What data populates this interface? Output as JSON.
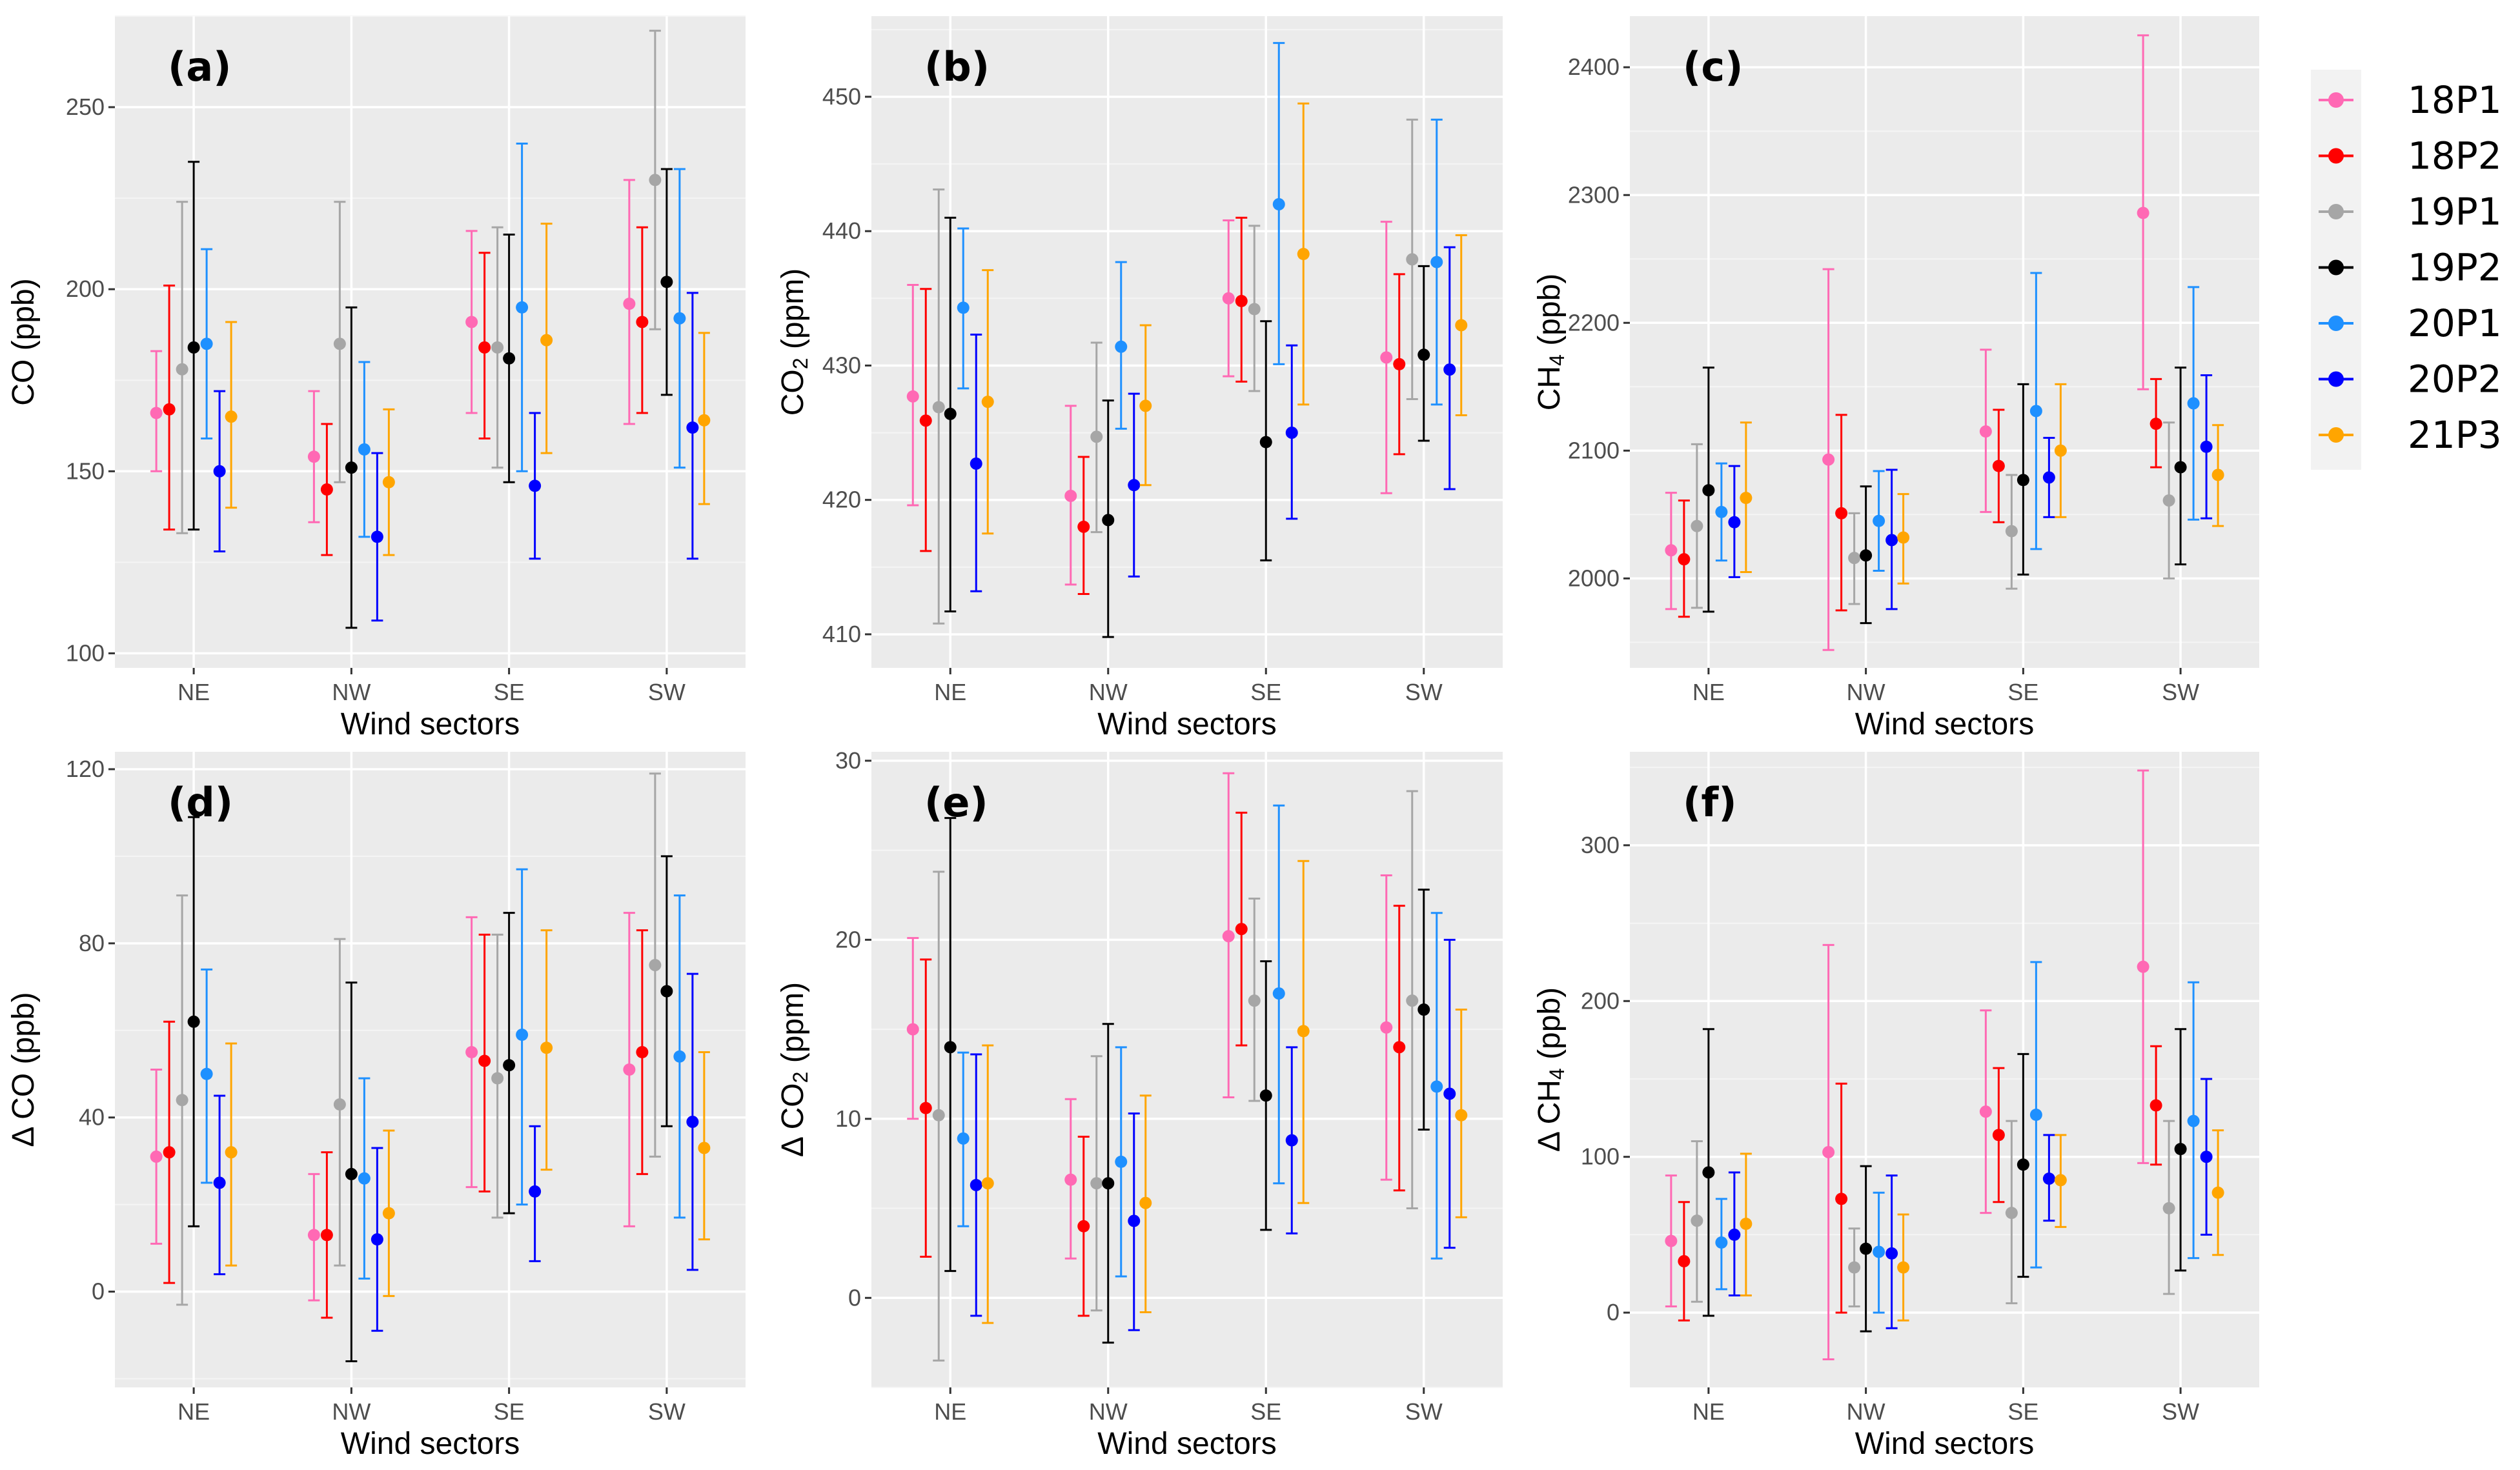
{
  "legend": {
    "items": [
      {
        "name": "18P1",
        "color": "#ff69b4"
      },
      {
        "name": "18P2",
        "color": "#ff0000"
      },
      {
        "name": "19P1",
        "color": "#a6a6a6"
      },
      {
        "name": "19P2",
        "color": "#000000"
      },
      {
        "name": "20P1",
        "color": "#1e90ff"
      },
      {
        "name": "20P2",
        "color": "#0000ff"
      },
      {
        "name": "21P3",
        "color": "#ffa500"
      }
    ]
  },
  "chart_data": [
    {
      "type": "scatter",
      "panel": "(a)",
      "title": "",
      "xlabel": "Wind sectors",
      "ylabel": "CO (ppb)",
      "ylabel_parts": [
        "CO (ppb)"
      ],
      "categories": [
        "NE",
        "NW",
        "SE",
        "SW"
      ],
      "yticks": [
        100,
        150,
        200,
        250
      ],
      "ylim": [
        96,
        275
      ],
      "series": [
        {
          "name": "18P1",
          "values": [
            166,
            154,
            191,
            196
          ],
          "lower": [
            150,
            136,
            166,
            163
          ],
          "upper": [
            183,
            172,
            216,
            230
          ]
        },
        {
          "name": "18P2",
          "values": [
            167,
            145,
            184,
            191
          ],
          "lower": [
            134,
            127,
            159,
            166
          ],
          "upper": [
            201,
            163,
            210,
            217
          ]
        },
        {
          "name": "19P1",
          "values": [
            178,
            185,
            184,
            230
          ],
          "lower": [
            133,
            147,
            151,
            189
          ],
          "upper": [
            224,
            224,
            217,
            271
          ]
        },
        {
          "name": "19P2",
          "values": [
            184,
            151,
            181,
            202
          ],
          "lower": [
            134,
            107,
            147,
            171
          ],
          "upper": [
            235,
            195,
            215,
            233
          ]
        },
        {
          "name": "20P1",
          "values": [
            185,
            156,
            195,
            192
          ],
          "lower": [
            159,
            132,
            150,
            151
          ],
          "upper": [
            211,
            180,
            240,
            233
          ]
        },
        {
          "name": "20P2",
          "values": [
            150,
            132,
            146,
            162
          ],
          "lower": [
            128,
            109,
            126,
            126
          ],
          "upper": [
            172,
            155,
            166,
            199
          ]
        },
        {
          "name": "21P3",
          "values": [
            165,
            147,
            186,
            164
          ],
          "lower": [
            140,
            127,
            155,
            141
          ],
          "upper": [
            191,
            167,
            218,
            188
          ]
        }
      ]
    },
    {
      "type": "scatter",
      "panel": "(b)",
      "title": "",
      "xlabel": "Wind sectors",
      "ylabel": "CO2 (ppm)",
      "ylabel_parts": [
        "CO",
        "2",
        " (ppm)"
      ],
      "categories": [
        "NE",
        "NW",
        "SE",
        "SW"
      ],
      "yticks": [
        410,
        420,
        430,
        440,
        450
      ],
      "ylim": [
        407.5,
        456
      ],
      "series": [
        {
          "name": "18P1",
          "values": [
            427.7,
            420.3,
            435.0,
            430.6
          ],
          "lower": [
            419.6,
            413.7,
            429.2,
            420.5
          ],
          "upper": [
            436.0,
            427.0,
            440.8,
            440.7
          ]
        },
        {
          "name": "18P2",
          "values": [
            425.9,
            418.0,
            434.8,
            430.1
          ],
          "lower": [
            416.2,
            413.0,
            428.8,
            423.4
          ],
          "upper": [
            435.7,
            423.2,
            441.0,
            436.8
          ]
        },
        {
          "name": "19P1",
          "values": [
            426.9,
            424.7,
            434.2,
            437.9
          ],
          "lower": [
            410.8,
            417.6,
            428.1,
            427.5
          ],
          "upper": [
            443.1,
            431.7,
            440.4,
            448.3
          ]
        },
        {
          "name": "19P2",
          "values": [
            426.4,
            418.5,
            424.3,
            430.8
          ],
          "lower": [
            411.7,
            409.8,
            415.5,
            424.4
          ],
          "upper": [
            441.0,
            427.4,
            433.3,
            437.4
          ]
        },
        {
          "name": "20P1",
          "values": [
            434.3,
            431.4,
            442.0,
            437.7
          ],
          "lower": [
            428.3,
            425.3,
            430.1,
            427.1
          ],
          "upper": [
            440.2,
            437.7,
            454.0,
            448.3
          ]
        },
        {
          "name": "20P2",
          "values": [
            422.7,
            421.1,
            425.0,
            429.7
          ],
          "lower": [
            413.2,
            414.3,
            418.6,
            420.8
          ],
          "upper": [
            432.3,
            427.9,
            431.5,
            438.8
          ]
        },
        {
          "name": "21P3",
          "values": [
            427.3,
            427.0,
            438.3,
            433.0
          ],
          "lower": [
            417.5,
            421.1,
            427.1,
            426.3
          ],
          "upper": [
            437.1,
            433.0,
            449.5,
            439.7
          ]
        }
      ]
    },
    {
      "type": "scatter",
      "panel": "(c)",
      "title": "",
      "xlabel": "Wind sectors",
      "ylabel": "CH4 (ppb)",
      "ylabel_parts": [
        "CH",
        "4",
        " (ppb)"
      ],
      "categories": [
        "NE",
        "NW",
        "SE",
        "SW"
      ],
      "yticks": [
        2000,
        2100,
        2200,
        2300,
        2400
      ],
      "ylim": [
        1930,
        2440
      ],
      "series": [
        {
          "name": "18P1",
          "values": [
            2022,
            2093,
            2115,
            2286
          ],
          "lower": [
            1976,
            1944,
            2052,
            2148
          ],
          "upper": [
            2067,
            2242,
            2179,
            2425
          ]
        },
        {
          "name": "18P2",
          "values": [
            2015,
            2051,
            2088,
            2121
          ],
          "lower": [
            1970,
            1975,
            2044,
            2087
          ],
          "upper": [
            2061,
            2128,
            2132,
            2156
          ]
        },
        {
          "name": "19P1",
          "values": [
            2041,
            2016,
            2037,
            2061
          ],
          "lower": [
            1977,
            1980,
            1992,
            2000
          ],
          "upper": [
            2105,
            2051,
            2081,
            2122
          ]
        },
        {
          "name": "19P2",
          "values": [
            2069,
            2018,
            2077,
            2087
          ],
          "lower": [
            1974,
            1965,
            2003,
            2011
          ],
          "upper": [
            2165,
            2072,
            2152,
            2165
          ]
        },
        {
          "name": "20P1",
          "values": [
            2052,
            2045,
            2131,
            2137
          ],
          "lower": [
            2014,
            2006,
            2023,
            2046
          ],
          "upper": [
            2090,
            2084,
            2239,
            2228
          ]
        },
        {
          "name": "20P2",
          "values": [
            2044,
            2030,
            2079,
            2103
          ],
          "lower": [
            2001,
            1976,
            2048,
            2047
          ],
          "upper": [
            2088,
            2085,
            2110,
            2159
          ]
        },
        {
          "name": "21P3",
          "values": [
            2063,
            2032,
            2100,
            2081
          ],
          "lower": [
            2005,
            1996,
            2048,
            2041
          ],
          "upper": [
            2122,
            2066,
            2152,
            2120
          ]
        }
      ]
    },
    {
      "type": "scatter",
      "panel": "(d)",
      "title": "",
      "xlabel": "Wind sectors",
      "ylabel": "Δ CO (ppb)",
      "ylabel_parts": [
        "Δ CO (ppb)"
      ],
      "categories": [
        "NE",
        "NW",
        "SE",
        "SW"
      ],
      "yticks": [
        0,
        40,
        80,
        120
      ],
      "ylim": [
        -22,
        124
      ],
      "series": [
        {
          "name": "18P1",
          "values": [
            31,
            13,
            55,
            51
          ],
          "lower": [
            11,
            -2,
            24,
            15
          ],
          "upper": [
            51,
            27,
            86,
            87
          ]
        },
        {
          "name": "18P2",
          "values": [
            32,
            13,
            53,
            55
          ],
          "lower": [
            2,
            -6,
            23,
            27
          ],
          "upper": [
            62,
            32,
            82,
            83
          ]
        },
        {
          "name": "19P1",
          "values": [
            44,
            43,
            49,
            75
          ],
          "lower": [
            -3,
            6,
            17,
            31
          ],
          "upper": [
            91,
            81,
            82,
            119
          ]
        },
        {
          "name": "19P2",
          "values": [
            62,
            27,
            52,
            69
          ],
          "lower": [
            15,
            -16,
            18,
            38
          ],
          "upper": [
            109,
            71,
            87,
            100
          ]
        },
        {
          "name": "20P1",
          "values": [
            50,
            26,
            59,
            54
          ],
          "lower": [
            25,
            3,
            20,
            17
          ],
          "upper": [
            74,
            49,
            97,
            91
          ]
        },
        {
          "name": "20P2",
          "values": [
            25,
            12,
            23,
            39
          ],
          "lower": [
            4,
            -9,
            7,
            5
          ],
          "upper": [
            45,
            33,
            38,
            73
          ]
        },
        {
          "name": "21P3",
          "values": [
            32,
            18,
            56,
            33
          ],
          "lower": [
            6,
            -1,
            28,
            12
          ],
          "upper": [
            57,
            37,
            83,
            55
          ]
        }
      ]
    },
    {
      "type": "scatter",
      "panel": "(e)",
      "title": "",
      "xlabel": "Wind sectors",
      "ylabel": "Δ CO2 (ppm)",
      "ylabel_parts": [
        "Δ CO",
        "2",
        " (ppm)"
      ],
      "categories": [
        "NE",
        "NW",
        "SE",
        "SW"
      ],
      "yticks": [
        0,
        10,
        20,
        30
      ],
      "ylim": [
        -5,
        30.5
      ],
      "series": [
        {
          "name": "18P1",
          "values": [
            15.0,
            6.6,
            20.2,
            15.1
          ],
          "lower": [
            10.0,
            2.2,
            11.2,
            6.6
          ],
          "upper": [
            20.1,
            11.1,
            29.3,
            23.6
          ]
        },
        {
          "name": "18P2",
          "values": [
            10.6,
            4.0,
            20.6,
            14.0
          ],
          "lower": [
            2.3,
            -1.0,
            14.1,
            6.0
          ],
          "upper": [
            18.9,
            9.0,
            27.1,
            21.9
          ]
        },
        {
          "name": "19P1",
          "values": [
            10.2,
            6.4,
            16.6,
            16.6
          ],
          "lower": [
            -3.5,
            -0.7,
            11.0,
            5.0
          ],
          "upper": [
            23.8,
            13.5,
            22.3,
            28.3
          ]
        },
        {
          "name": "19P2",
          "values": [
            14.0,
            6.4,
            11.3,
            16.1
          ],
          "lower": [
            1.5,
            -2.5,
            3.8,
            9.4
          ],
          "upper": [
            26.8,
            15.3,
            18.8,
            22.8
          ]
        },
        {
          "name": "20P1",
          "values": [
            8.9,
            7.6,
            17.0,
            11.8
          ],
          "lower": [
            4.0,
            1.2,
            6.4,
            2.2
          ],
          "upper": [
            13.7,
            14.0,
            27.5,
            21.5
          ]
        },
        {
          "name": "20P2",
          "values": [
            6.3,
            4.3,
            8.8,
            11.4
          ],
          "lower": [
            -1.0,
            -1.8,
            3.6,
            2.8
          ],
          "upper": [
            13.6,
            10.3,
            14.0,
            20.0
          ]
        },
        {
          "name": "21P3",
          "values": [
            6.4,
            5.3,
            14.9,
            10.2
          ],
          "lower": [
            -1.4,
            -0.8,
            5.3,
            4.5
          ],
          "upper": [
            14.1,
            11.3,
            24.4,
            16.1
          ]
        }
      ]
    },
    {
      "type": "scatter",
      "panel": "(f)",
      "title": "",
      "xlabel": "Wind sectors",
      "ylabel": "Δ CH4 (ppb)",
      "ylabel_parts": [
        "Δ CH",
        "4",
        " (ppb)"
      ],
      "categories": [
        "NE",
        "NW",
        "SE",
        "SW"
      ],
      "yticks": [
        0,
        100,
        200,
        300
      ],
      "ylim": [
        -48,
        360
      ],
      "series": [
        {
          "name": "18P1",
          "values": [
            46,
            103,
            129,
            222
          ],
          "lower": [
            4,
            -30,
            64,
            96
          ],
          "upper": [
            88,
            236,
            194,
            348
          ]
        },
        {
          "name": "18P2",
          "values": [
            33,
            73,
            114,
            133
          ],
          "lower": [
            -5,
            0,
            71,
            95
          ],
          "upper": [
            71,
            147,
            157,
            171
          ]
        },
        {
          "name": "19P1",
          "values": [
            59,
            29,
            64,
            67
          ],
          "lower": [
            7,
            4,
            6,
            12
          ],
          "upper": [
            110,
            54,
            123,
            123
          ]
        },
        {
          "name": "19P2",
          "values": [
            90,
            41,
            95,
            105
          ],
          "lower": [
            -2,
            -12,
            23,
            27
          ],
          "upper": [
            182,
            94,
            166,
            182
          ]
        },
        {
          "name": "20P1",
          "values": [
            45,
            39,
            127,
            123
          ],
          "lower": [
            15,
            0,
            29,
            35
          ],
          "upper": [
            73,
            77,
            225,
            212
          ]
        },
        {
          "name": "20P2",
          "values": [
            50,
            38,
            86,
            100
          ],
          "lower": [
            11,
            -10,
            59,
            50
          ],
          "upper": [
            90,
            88,
            114,
            150
          ]
        },
        {
          "name": "21P3",
          "values": [
            57,
            29,
            85,
            77
          ],
          "lower": [
            11,
            -5,
            55,
            37
          ],
          "upper": [
            102,
            63,
            114,
            117
          ]
        }
      ]
    }
  ]
}
